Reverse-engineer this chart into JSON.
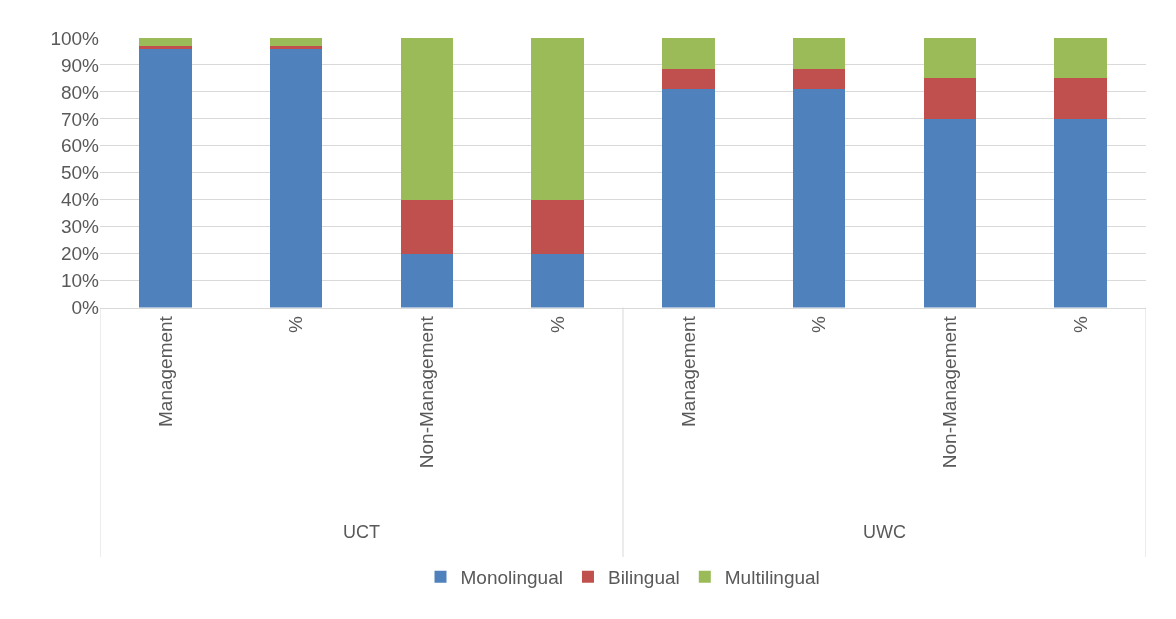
{
  "chart_data": {
    "type": "bar",
    "stacked": true,
    "categories": [
      "Management",
      "%",
      "Non-Management",
      "%",
      "Management",
      "%",
      "Non-Management",
      "%"
    ],
    "annotations": [
      "UCT",
      "UWC"
    ],
    "series": [
      {
        "name": "Monolingual",
        "color": "#4f81bd",
        "values": [
          96,
          96,
          20,
          20,
          81,
          81,
          70,
          70
        ]
      },
      {
        "name": "Bilingual",
        "color": "#c0504d",
        "values": [
          1,
          1,
          20,
          20,
          7.5,
          7.5,
          15,
          15
        ]
      },
      {
        "name": "Multilingual",
        "color": "#9bbb59",
        "values": [
          3,
          3,
          60,
          60,
          11.5,
          11.5,
          15,
          15
        ]
      }
    ],
    "ylim": [
      0,
      100
    ],
    "yticks": [
      {
        "value": 0,
        "label": "0%"
      },
      {
        "value": 10,
        "label": "10%"
      },
      {
        "value": 20,
        "label": "20%"
      },
      {
        "value": 30,
        "label": "30%"
      },
      {
        "value": 40,
        "label": "40%"
      },
      {
        "value": 50,
        "label": "50%"
      },
      {
        "value": 60,
        "label": "60%"
      },
      {
        "value": 70,
        "label": "70%"
      },
      {
        "value": 80,
        "label": "80%"
      },
      {
        "value": 90,
        "label": "90%"
      },
      {
        "value": 100,
        "label": "100%"
      }
    ],
    "grid": "y",
    "legend": "bottom"
  }
}
